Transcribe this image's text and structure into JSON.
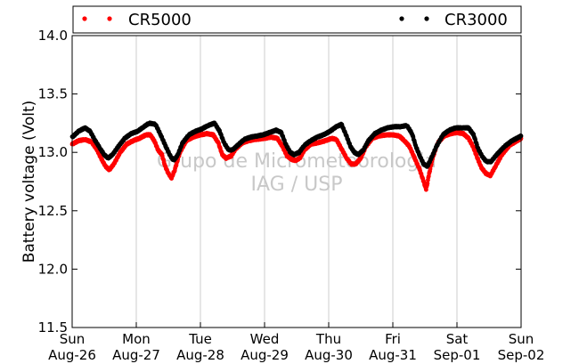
{
  "chart_data": {
    "type": "scatter",
    "ylabel": "Battery voltage (Volt)",
    "ylim": [
      11.5,
      14.0
    ],
    "yticks": [
      "11.5",
      "12.0",
      "12.5",
      "13.0",
      "13.5",
      "14.0"
    ],
    "xlim": [
      0,
      7
    ],
    "xticks": [
      {
        "day": 0,
        "weekday": "Sun",
        "date": "Aug-26"
      },
      {
        "day": 1,
        "weekday": "Mon",
        "date": "Aug-27"
      },
      {
        "day": 2,
        "weekday": "Tue",
        "date": "Aug-28"
      },
      {
        "day": 3,
        "weekday": "Wed",
        "date": "Aug-29"
      },
      {
        "day": 4,
        "weekday": "Thu",
        "date": "Aug-30"
      },
      {
        "day": 5,
        "weekday": "Fri",
        "date": "Aug-31"
      },
      {
        "day": 6,
        "weekday": "Sat",
        "date": "Sep-01"
      },
      {
        "day": 7,
        "weekday": "Sun",
        "date": "Sep-02"
      }
    ],
    "grid": "vertical",
    "legend_position": "top",
    "watermark": [
      "Grupo de Micrometeorologia",
      "IAG / USP"
    ],
    "series": [
      {
        "name": "CR5000",
        "color": "#ff0000",
        "points": [
          [
            0.0,
            13.07
          ],
          [
            0.1,
            13.1
          ],
          [
            0.2,
            13.11
          ],
          [
            0.3,
            13.09
          ],
          [
            0.38,
            13.03
          ],
          [
            0.45,
            12.95
          ],
          [
            0.52,
            12.88
          ],
          [
            0.58,
            12.85
          ],
          [
            0.65,
            12.9
          ],
          [
            0.75,
            13.0
          ],
          [
            0.85,
            13.07
          ],
          [
            0.95,
            13.1
          ],
          [
            1.05,
            13.12
          ],
          [
            1.15,
            13.15
          ],
          [
            1.22,
            13.15
          ],
          [
            1.28,
            13.1
          ],
          [
            1.34,
            13.02
          ],
          [
            1.4,
            12.98
          ],
          [
            1.45,
            12.88
          ],
          [
            1.5,
            12.82
          ],
          [
            1.55,
            12.78
          ],
          [
            1.6,
            12.85
          ],
          [
            1.68,
            13.0
          ],
          [
            1.78,
            13.1
          ],
          [
            1.88,
            13.13
          ],
          [
            2.0,
            13.15
          ],
          [
            2.1,
            13.16
          ],
          [
            2.2,
            13.15
          ],
          [
            2.28,
            13.08
          ],
          [
            2.34,
            12.98
          ],
          [
            2.4,
            12.95
          ],
          [
            2.48,
            12.97
          ],
          [
            2.55,
            13.03
          ],
          [
            2.65,
            13.08
          ],
          [
            2.75,
            13.1
          ],
          [
            2.85,
            13.11
          ],
          [
            3.0,
            13.12
          ],
          [
            3.1,
            13.13
          ],
          [
            3.2,
            13.12
          ],
          [
            3.28,
            13.05
          ],
          [
            3.35,
            12.97
          ],
          [
            3.42,
            12.94
          ],
          [
            3.48,
            12.93
          ],
          [
            3.55,
            12.95
          ],
          [
            3.62,
            13.02
          ],
          [
            3.72,
            13.07
          ],
          [
            3.82,
            13.08
          ],
          [
            3.95,
            13.1
          ],
          [
            4.05,
            13.12
          ],
          [
            4.12,
            13.11
          ],
          [
            4.2,
            13.03
          ],
          [
            4.28,
            12.95
          ],
          [
            4.35,
            12.9
          ],
          [
            4.42,
            12.9
          ],
          [
            4.5,
            12.95
          ],
          [
            4.58,
            13.05
          ],
          [
            4.68,
            13.12
          ],
          [
            4.78,
            13.14
          ],
          [
            4.9,
            13.15
          ],
          [
            5.0,
            13.15
          ],
          [
            5.1,
            13.14
          ],
          [
            5.18,
            13.1
          ],
          [
            5.26,
            13.05
          ],
          [
            5.34,
            12.95
          ],
          [
            5.42,
            12.85
          ],
          [
            5.48,
            12.75
          ],
          [
            5.52,
            12.68
          ],
          [
            5.56,
            12.8
          ],
          [
            5.62,
            12.95
          ],
          [
            5.7,
            13.08
          ],
          [
            5.8,
            13.14
          ],
          [
            5.9,
            13.16
          ],
          [
            6.0,
            13.17
          ],
          [
            6.1,
            13.16
          ],
          [
            6.18,
            13.12
          ],
          [
            6.25,
            13.05
          ],
          [
            6.32,
            12.95
          ],
          [
            6.38,
            12.87
          ],
          [
            6.45,
            12.82
          ],
          [
            6.52,
            12.8
          ],
          [
            6.6,
            12.88
          ],
          [
            6.7,
            12.98
          ],
          [
            6.82,
            13.06
          ],
          [
            7.0,
            13.12
          ]
        ]
      },
      {
        "name": "CR3000",
        "color": "#000000",
        "points": [
          [
            0.0,
            13.13
          ],
          [
            0.1,
            13.18
          ],
          [
            0.2,
            13.21
          ],
          [
            0.28,
            13.18
          ],
          [
            0.36,
            13.1
          ],
          [
            0.44,
            13.03
          ],
          [
            0.5,
            12.98
          ],
          [
            0.56,
            12.95
          ],
          [
            0.63,
            12.98
          ],
          [
            0.72,
            13.05
          ],
          [
            0.82,
            13.12
          ],
          [
            0.92,
            13.16
          ],
          [
            1.02,
            13.18
          ],
          [
            1.12,
            13.22
          ],
          [
            1.2,
            13.25
          ],
          [
            1.3,
            13.24
          ],
          [
            1.38,
            13.15
          ],
          [
            1.46,
            13.05
          ],
          [
            1.53,
            12.97
          ],
          [
            1.58,
            12.93
          ],
          [
            1.64,
            12.97
          ],
          [
            1.72,
            13.08
          ],
          [
            1.82,
            13.15
          ],
          [
            1.92,
            13.18
          ],
          [
            2.02,
            13.2
          ],
          [
            2.12,
            13.23
          ],
          [
            2.22,
            13.25
          ],
          [
            2.3,
            13.18
          ],
          [
            2.37,
            13.08
          ],
          [
            2.44,
            13.02
          ],
          [
            2.5,
            13.02
          ],
          [
            2.58,
            13.06
          ],
          [
            2.68,
            13.11
          ],
          [
            2.78,
            13.13
          ],
          [
            2.88,
            13.14
          ],
          [
            2.98,
            13.15
          ],
          [
            3.08,
            13.17
          ],
          [
            3.18,
            13.19
          ],
          [
            3.26,
            13.17
          ],
          [
            3.33,
            13.07
          ],
          [
            3.4,
            13.0
          ],
          [
            3.46,
            12.98
          ],
          [
            3.54,
            13.0
          ],
          [
            3.62,
            13.06
          ],
          [
            3.72,
            13.1
          ],
          [
            3.82,
            13.13
          ],
          [
            3.92,
            13.15
          ],
          [
            4.02,
            13.18
          ],
          [
            4.12,
            13.22
          ],
          [
            4.2,
            13.24
          ],
          [
            4.27,
            13.15
          ],
          [
            4.34,
            13.05
          ],
          [
            4.4,
            13.0
          ],
          [
            4.46,
            12.98
          ],
          [
            4.54,
            13.02
          ],
          [
            4.62,
            13.1
          ],
          [
            4.72,
            13.16
          ],
          [
            4.82,
            13.19
          ],
          [
            4.92,
            13.21
          ],
          [
            5.02,
            13.22
          ],
          [
            5.12,
            13.22
          ],
          [
            5.22,
            13.23
          ],
          [
            5.3,
            13.16
          ],
          [
            5.36,
            13.05
          ],
          [
            5.42,
            12.97
          ],
          [
            5.48,
            12.9
          ],
          [
            5.54,
            12.88
          ],
          [
            5.6,
            12.95
          ],
          [
            5.68,
            13.05
          ],
          [
            5.78,
            13.15
          ],
          [
            5.88,
            13.19
          ],
          [
            5.98,
            13.21
          ],
          [
            6.08,
            13.21
          ],
          [
            6.18,
            13.21
          ],
          [
            6.26,
            13.15
          ],
          [
            6.33,
            13.03
          ],
          [
            6.4,
            12.96
          ],
          [
            6.46,
            12.92
          ],
          [
            6.53,
            12.92
          ],
          [
            6.62,
            12.98
          ],
          [
            6.74,
            13.05
          ],
          [
            6.86,
            13.1
          ],
          [
            7.0,
            13.14
          ]
        ]
      }
    ]
  }
}
